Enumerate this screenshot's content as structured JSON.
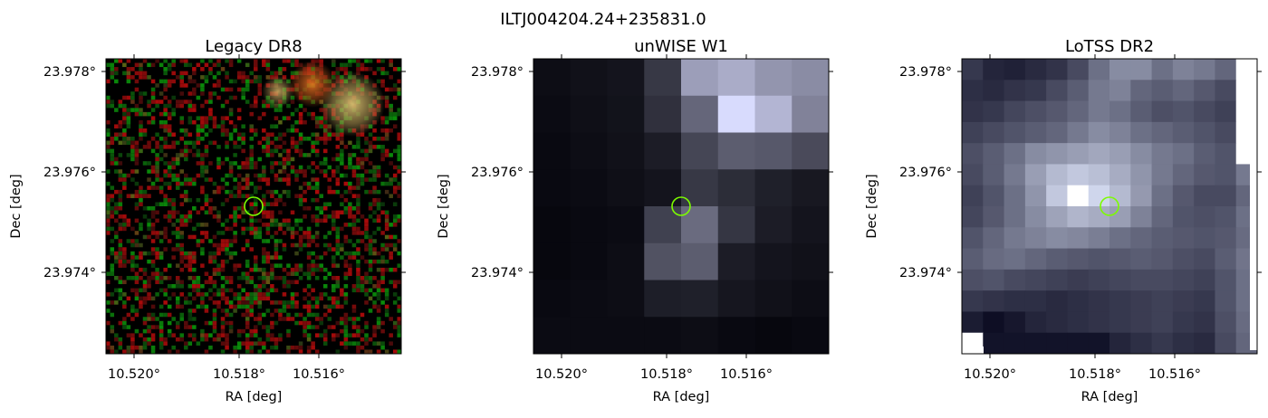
{
  "figure": {
    "title": "ILTJ004204.24+235831.0"
  },
  "panels": [
    {
      "title": "Legacy DR8",
      "xlabel": "RA [deg]",
      "ylabel": "Dec [deg]",
      "x_ticks": [
        "10.520°",
        "10.518°",
        "10.516°"
      ],
      "y_ticks": [
        "23.978°",
        "23.976°",
        "23.974°"
      ],
      "image_kind": "optical-rgb-noise",
      "marker_color": "#7cfc00"
    },
    {
      "title": "unWISE W1",
      "xlabel": "RA [deg]",
      "ylabel": "Dec [deg]",
      "x_ticks": [
        "10.520°",
        "10.518°",
        "10.516°"
      ],
      "y_ticks": [
        "23.978°",
        "23.976°",
        "23.974°"
      ],
      "image_kind": "infrared-grayscale",
      "marker_color": "#7cfc00"
    },
    {
      "title": "LoTSS DR2",
      "xlabel": "RA [deg]",
      "ylabel": "Dec [deg]",
      "x_ticks": [
        "10.520°",
        "10.518°",
        "10.516°"
      ],
      "y_ticks": [
        "23.978°",
        "23.976°",
        "23.974°"
      ],
      "image_kind": "radio-bone",
      "marker_color": "#7cfc00"
    }
  ]
}
